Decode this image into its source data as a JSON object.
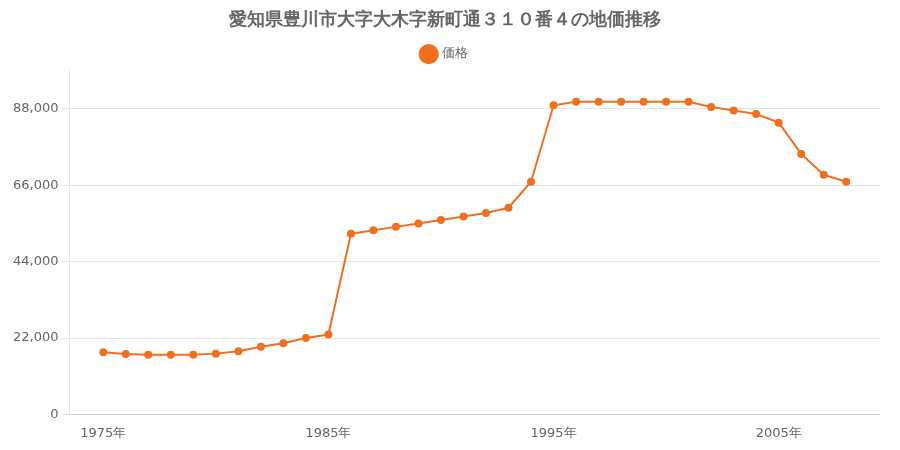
{
  "chart_data": {
    "type": "line",
    "title": "愛知県豊川市大字大木字新町通３１０番４の地価推移",
    "x": [
      1975,
      1976,
      1977,
      1978,
      1979,
      1980,
      1981,
      1982,
      1983,
      1984,
      1985,
      1986,
      1987,
      1988,
      1989,
      1990,
      1991,
      1992,
      1993,
      1994,
      1995,
      1996,
      1997,
      1998,
      1999,
      2000,
      2001,
      2002,
      2003,
      2004,
      2005,
      2006,
      2007,
      2008
    ],
    "series": [
      {
        "name": "価格",
        "color": "#f07020",
        "marker": "circle",
        "values": [
          17900,
          17400,
          17200,
          17200,
          17200,
          17500,
          18200,
          19500,
          20500,
          22000,
          23000,
          52000,
          53000,
          54000,
          55000,
          56000,
          57000,
          58000,
          59500,
          67000,
          89000,
          90000,
          90000,
          90000,
          90000,
          90000,
          90000,
          88500,
          87500,
          86500,
          84000,
          75000,
          69000,
          67000
        ]
      }
    ],
    "xlim": [
      1973.5,
      2009.5
    ],
    "xticks": [
      {
        "value": 1975,
        "label": "1975年"
      },
      {
        "value": 1985,
        "label": "1985年"
      },
      {
        "value": 1995,
        "label": "1995年"
      },
      {
        "value": 2005,
        "label": "2005年"
      }
    ],
    "ylim": [
      0,
      99000
    ],
    "yticks": [
      0,
      {
        "value": 22000,
        "label": "22,000"
      },
      {
        "value": 44000,
        "label": "44,000"
      },
      {
        "value": 66000,
        "label": "66,000"
      },
      {
        "value": 88000,
        "label": "88,000"
      }
    ],
    "grid": "y",
    "legend": "top"
  }
}
